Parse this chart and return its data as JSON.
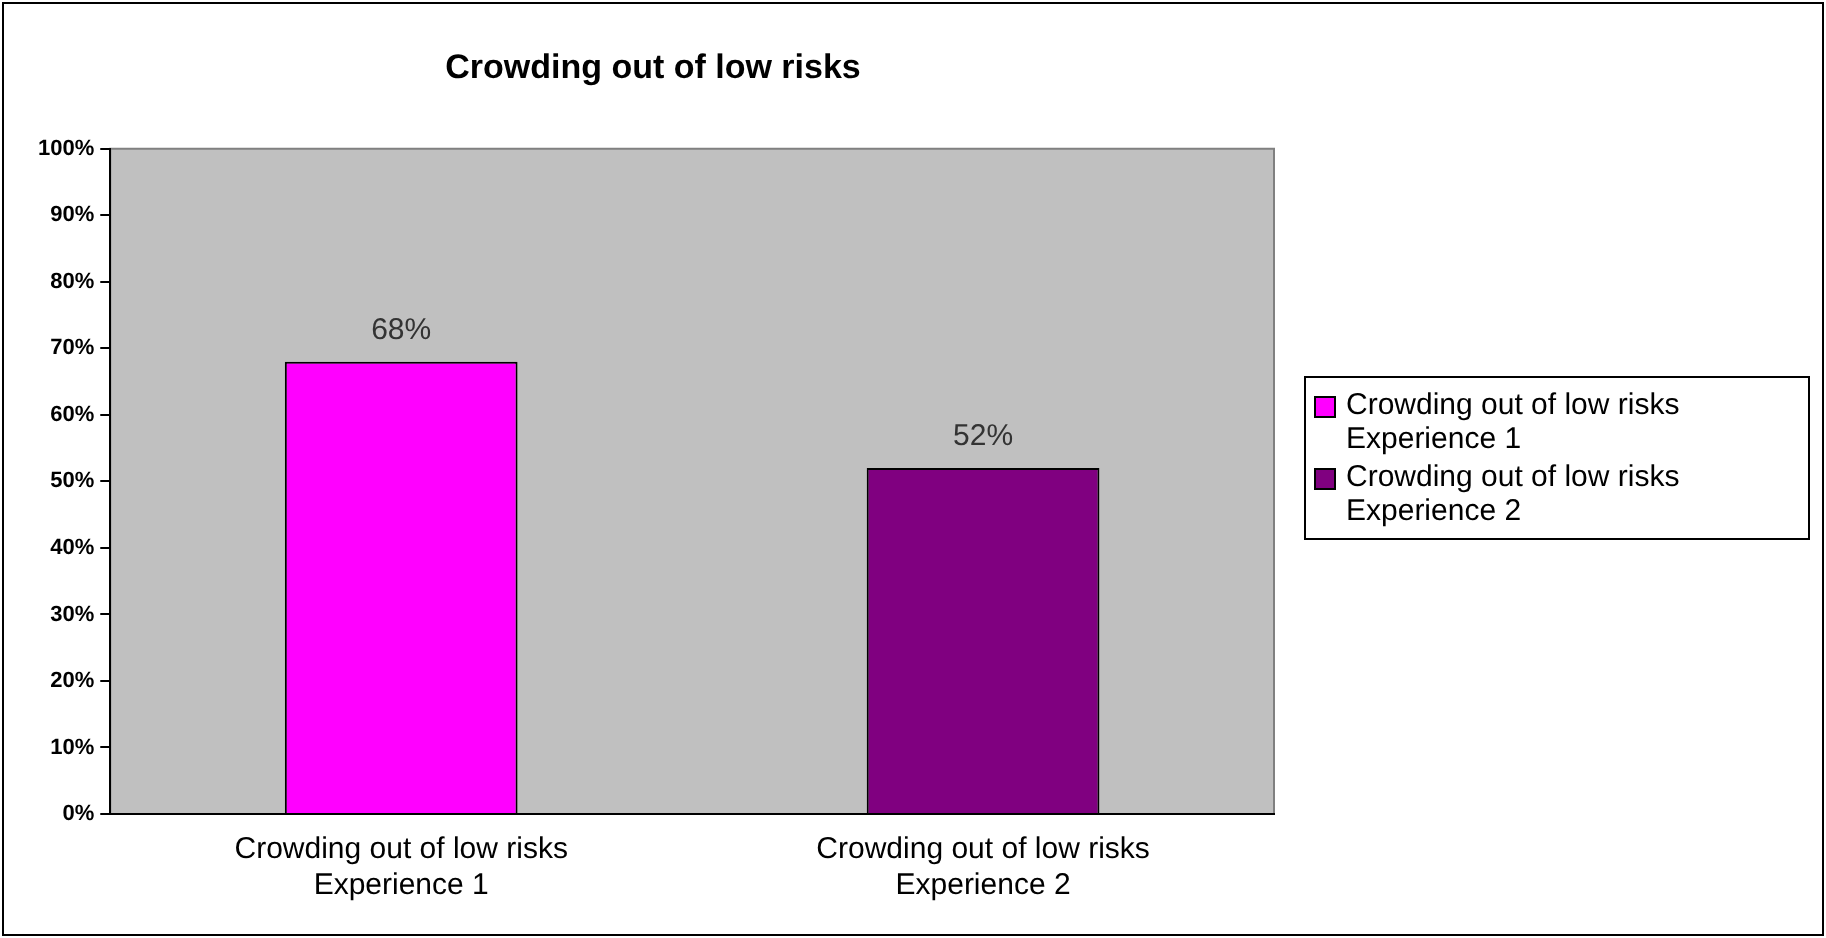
{
  "chart_data": {
    "type": "bar",
    "title": "Crowding out of low risks",
    "categories": [
      "Crowding out of low risks Experience 1",
      "Crowding out of low risks Experience 2"
    ],
    "series": [
      {
        "name": "Crowding out of low risks Experience 1",
        "color": "#ff00ff",
        "values": [
          68,
          null
        ],
        "value_labels": [
          "68%",
          null
        ]
      },
      {
        "name": "Crowding out of low risks Experience 2",
        "color": "#800080",
        "values": [
          null,
          52
        ],
        "value_labels": [
          null,
          "52%"
        ]
      }
    ],
    "ylim": [
      0,
      100
    ],
    "yticks": [
      {
        "value": 0,
        "label": "0%"
      },
      {
        "value": 10,
        "label": "10%"
      },
      {
        "value": 20,
        "label": "20%"
      },
      {
        "value": 30,
        "label": "30%"
      },
      {
        "value": 40,
        "label": "40%"
      },
      {
        "value": 50,
        "label": "50%"
      },
      {
        "value": 60,
        "label": "60%"
      },
      {
        "value": 70,
        "label": "70%"
      },
      {
        "value": 80,
        "label": "80%"
      },
      {
        "value": 90,
        "label": "90%"
      },
      {
        "value": 100,
        "label": "100%"
      }
    ],
    "grid": false,
    "legend": "right"
  }
}
